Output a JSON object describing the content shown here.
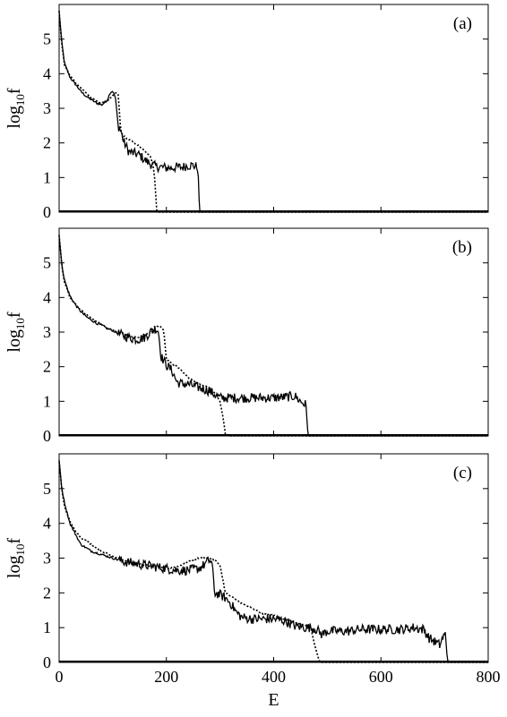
{
  "chart_data": [
    {
      "type": "line",
      "panel_label": "(a)",
      "ylabel_base": "log",
      "ylabel_sub": "10",
      "ylabel_tail": "f",
      "xlim": [
        0,
        800
      ],
      "ylim": [
        0,
        6
      ],
      "yticks": [
        0,
        1,
        2,
        3,
        4,
        5
      ],
      "series": [
        {
          "style": "solid",
          "x": [
            0,
            5,
            10,
            20,
            30,
            40,
            50,
            60,
            70,
            80,
            90,
            95,
            100,
            105,
            110,
            115,
            120,
            130,
            140,
            150,
            160,
            170,
            180,
            190,
            200,
            210,
            220,
            230,
            240,
            250,
            258,
            260,
            262,
            800
          ],
          "y": [
            5.8,
            4.9,
            4.3,
            3.9,
            3.7,
            3.5,
            3.35,
            3.25,
            3.15,
            3.1,
            3.25,
            3.45,
            3.5,
            3.3,
            2.5,
            2.35,
            2.05,
            1.75,
            1.7,
            1.65,
            1.5,
            1.4,
            1.32,
            1.3,
            1.28,
            1.28,
            1.3,
            1.3,
            1.35,
            1.35,
            1.3,
            0.8,
            0,
            0
          ]
        },
        {
          "style": "dotted",
          "x": [
            0,
            5,
            10,
            20,
            30,
            40,
            50,
            60,
            70,
            80,
            90,
            100,
            105,
            110,
            115,
            120,
            130,
            140,
            150,
            160,
            170,
            175,
            178,
            182,
            186,
            800
          ],
          "y": [
            5.8,
            4.85,
            4.25,
            3.95,
            3.75,
            3.6,
            3.45,
            3.3,
            3.2,
            3.15,
            3.2,
            3.35,
            3.45,
            3.4,
            2.3,
            2.2,
            2.1,
            2.0,
            1.9,
            1.75,
            1.6,
            1.4,
            1.0,
            0.05,
            0,
            0
          ]
        }
      ]
    },
    {
      "type": "line",
      "panel_label": "(b)",
      "ylabel_base": "log",
      "ylabel_sub": "10",
      "ylabel_tail": "f",
      "xlim": [
        0,
        800
      ],
      "ylim": [
        0,
        6
      ],
      "yticks": [
        0,
        1,
        2,
        3,
        4,
        5
      ],
      "series": [
        {
          "style": "solid",
          "x": [
            0,
            5,
            10,
            20,
            30,
            40,
            50,
            60,
            70,
            80,
            90,
            100,
            110,
            120,
            130,
            140,
            150,
            160,
            170,
            180,
            185,
            190,
            200,
            210,
            220,
            230,
            240,
            250,
            260,
            270,
            280,
            290,
            300,
            320,
            340,
            360,
            380,
            400,
            420,
            440,
            450,
            460,
            465,
            800
          ],
          "y": [
            5.8,
            4.95,
            4.5,
            4.05,
            3.8,
            3.6,
            3.45,
            3.35,
            3.25,
            3.2,
            3.1,
            3.05,
            2.95,
            2.9,
            2.85,
            2.8,
            2.8,
            2.85,
            3.0,
            3.1,
            3.05,
            2.3,
            2.05,
            1.9,
            1.55,
            1.5,
            1.5,
            1.45,
            1.4,
            1.35,
            1.3,
            1.2,
            1.1,
            1.1,
            1.1,
            1.1,
            1.1,
            1.1,
            1.12,
            1.15,
            1.0,
            0.9,
            0,
            0
          ]
        },
        {
          "style": "dotted",
          "x": [
            0,
            5,
            10,
            20,
            30,
            40,
            50,
            60,
            70,
            80,
            90,
            100,
            110,
            120,
            130,
            140,
            150,
            160,
            170,
            180,
            190,
            195,
            200,
            210,
            220,
            230,
            240,
            250,
            260,
            270,
            280,
            290,
            300,
            305,
            310,
            315,
            800
          ],
          "y": [
            5.8,
            4.9,
            4.45,
            4.0,
            3.8,
            3.65,
            3.5,
            3.4,
            3.3,
            3.2,
            3.1,
            3.05,
            3.0,
            2.95,
            2.9,
            2.85,
            2.85,
            2.9,
            3.0,
            3.2,
            3.15,
            3.05,
            2.2,
            2.1,
            2.0,
            1.85,
            1.7,
            1.6,
            1.5,
            1.45,
            1.4,
            1.25,
            1.0,
            0.6,
            0.05,
            0,
            0
          ]
        }
      ]
    },
    {
      "type": "line",
      "panel_label": "(c)",
      "ylabel_base": "log",
      "ylabel_sub": "10",
      "ylabel_tail": "f",
      "xlabel": "E",
      "xlim": [
        0,
        800
      ],
      "ylim": [
        0,
        6
      ],
      "yticks": [
        0,
        1,
        2,
        3,
        4,
        5
      ],
      "xticks": [
        0,
        200,
        400,
        600,
        800
      ],
      "series": [
        {
          "style": "solid",
          "x": [
            0,
            5,
            10,
            20,
            30,
            40,
            60,
            80,
            100,
            120,
            140,
            160,
            180,
            200,
            220,
            240,
            260,
            270,
            280,
            285,
            290,
            300,
            310,
            320,
            330,
            340,
            360,
            380,
            400,
            420,
            440,
            460,
            470,
            480,
            490,
            500,
            520,
            540,
            560,
            580,
            600,
            620,
            640,
            660,
            680,
            690,
            700,
            710,
            715,
            720,
            725,
            800
          ],
          "y": [
            5.8,
            5.0,
            4.6,
            4.0,
            3.7,
            3.4,
            3.2,
            3.1,
            3.0,
            2.9,
            2.85,
            2.8,
            2.75,
            2.7,
            2.65,
            2.65,
            2.7,
            2.8,
            2.95,
            2.85,
            2.0,
            1.95,
            1.85,
            1.7,
            1.45,
            1.3,
            1.25,
            1.25,
            1.25,
            1.2,
            1.05,
            1.0,
            1.0,
            0.95,
            0.8,
            0.9,
            0.9,
            0.9,
            0.95,
            0.95,
            0.95,
            0.95,
            0.95,
            1.0,
            0.95,
            0.7,
            0.6,
            0.5,
            0.7,
            0.8,
            0,
            0
          ]
        },
        {
          "style": "dotted",
          "x": [
            0,
            5,
            10,
            20,
            30,
            40,
            60,
            80,
            100,
            120,
            140,
            160,
            180,
            200,
            220,
            240,
            260,
            270,
            280,
            290,
            300,
            310,
            320,
            330,
            340,
            360,
            380,
            400,
            420,
            440,
            460,
            470,
            475,
            480,
            485,
            490,
            800
          ],
          "y": [
            5.8,
            4.95,
            4.5,
            4.05,
            3.8,
            3.6,
            3.4,
            3.2,
            3.05,
            2.95,
            2.85,
            2.8,
            2.75,
            2.7,
            2.75,
            2.9,
            3.0,
            3.0,
            3.0,
            2.95,
            2.8,
            2.0,
            1.9,
            1.8,
            1.7,
            1.55,
            1.4,
            1.35,
            1.25,
            1.15,
            1.05,
            0.95,
            0.6,
            0.3,
            0.05,
            0,
            0
          ]
        }
      ]
    }
  ]
}
